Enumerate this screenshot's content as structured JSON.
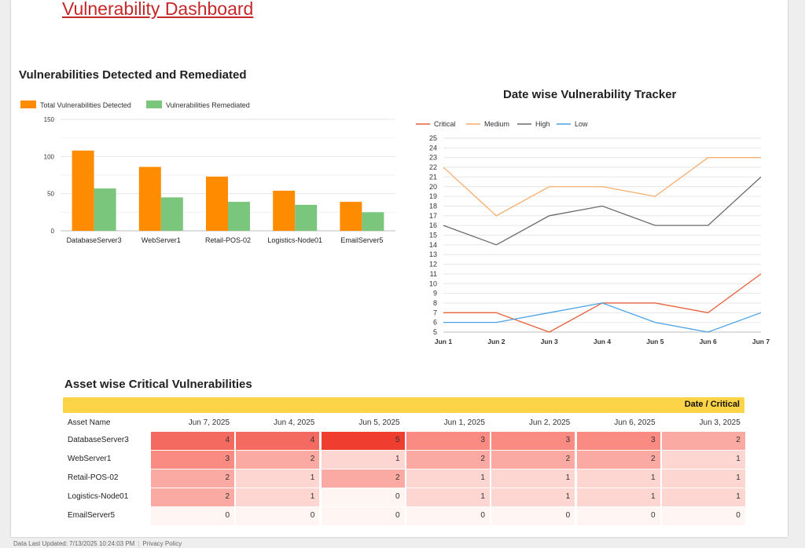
{
  "header": {
    "title": "Vulnerability Dashboard"
  },
  "bar_chart": {
    "title": "Vulnerabilities Detected and Remediated"
  },
  "line_chart": {
    "title": "Date wise Vulnerability Tracker"
  },
  "heatmap": {
    "title": "Asset wise Critical Vulnerabilities",
    "banner": "Date / Critical",
    "row_header": "Asset Name"
  },
  "footer": {
    "updated": "Data Last Updated: 7/13/2025 10:24:03 PM",
    "privacy": "Privacy Policy"
  },
  "colors": {
    "detected": "#ff8c00",
    "remediated": "#7ac67d",
    "critical": "#e8613c",
    "medium": "#f5ad6b",
    "high": "#6b6b6b",
    "low": "#4aa3e6"
  },
  "chart_data": [
    {
      "type": "bar",
      "title": "Vulnerabilities Detected and Remediated",
      "categories": [
        "DatabaseServer3",
        "WebServer1",
        "Retail-POS-02",
        "Logistics-Node01",
        "EmailServer5"
      ],
      "series": [
        {
          "name": "Total Vulnerabilities Detected",
          "values": [
            108,
            86,
            73,
            54,
            39
          ]
        },
        {
          "name": "Vulnerabilities Remediated",
          "values": [
            57,
            45,
            39,
            35,
            25
          ]
        }
      ],
      "ylim": [
        0,
        150
      ],
      "yticks": [
        0,
        50,
        100,
        150
      ],
      "legend": "top-left",
      "grid": true
    },
    {
      "type": "line",
      "title": "Date wise Vulnerability Tracker",
      "x": [
        "Jun 1",
        "Jun 2",
        "Jun 3",
        "Jun 4",
        "Jun 5",
        "Jun 6",
        "Jun 7"
      ],
      "series": [
        {
          "name": "Critical",
          "values": [
            7,
            7,
            5,
            8,
            8,
            7,
            11
          ]
        },
        {
          "name": "Medium",
          "values": [
            22,
            17,
            20,
            20,
            19,
            23,
            23
          ]
        },
        {
          "name": "High",
          "values": [
            16,
            14,
            17,
            18,
            16,
            16,
            21
          ]
        },
        {
          "name": "Low",
          "values": [
            6,
            6,
            7,
            8,
            6,
            5,
            7
          ]
        }
      ],
      "ylim": [
        5,
        25
      ],
      "legend": "top-left",
      "grid": true
    },
    {
      "type": "heatmap",
      "title": "Asset wise Critical Vulnerabilities",
      "columns": [
        "Jun 7, 2025",
        "Jun 4, 2025",
        "Jun 5, 2025",
        "Jun 1, 2025",
        "Jun 2, 2025",
        "Jun 6, 2025",
        "Jun 3, 2025"
      ],
      "rows": [
        "DatabaseServer3",
        "WebServer1",
        "Retail-POS-02",
        "Logistics-Node01",
        "EmailServer5"
      ],
      "values": [
        [
          4,
          4,
          5,
          3,
          3,
          3,
          2
        ],
        [
          3,
          2,
          1,
          2,
          2,
          2,
          1
        ],
        [
          2,
          1,
          2,
          1,
          1,
          1,
          1
        ],
        [
          2,
          1,
          0,
          1,
          1,
          1,
          1
        ],
        [
          0,
          0,
          0,
          0,
          0,
          0,
          0
        ]
      ],
      "vmax": 5
    }
  ]
}
